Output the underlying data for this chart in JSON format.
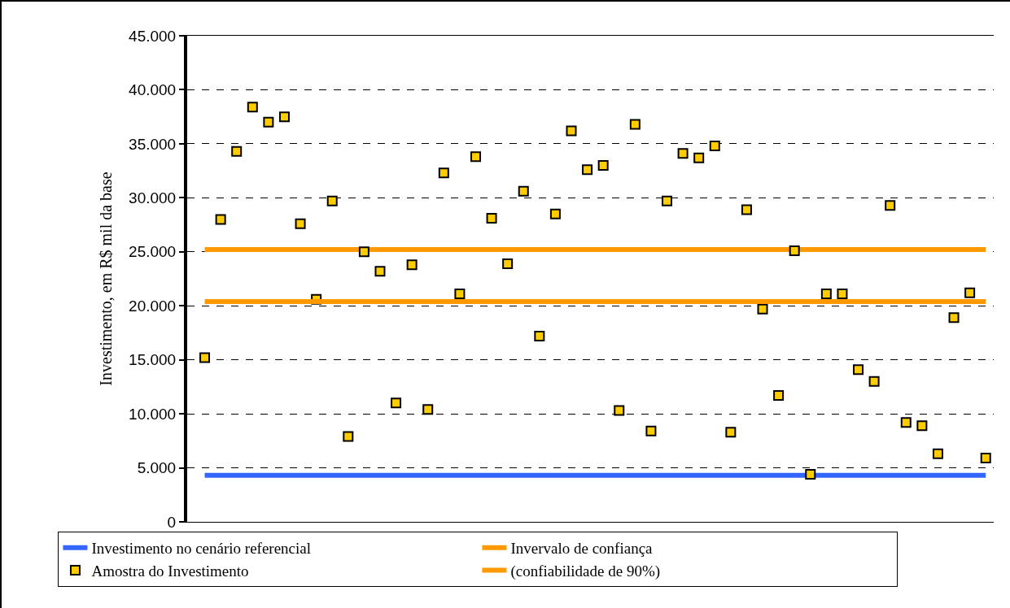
{
  "chart_data": {
    "type": "scatter",
    "ylabel": "Investimento, em R$ mil da base",
    "categories": [
      null,
      null,
      null,
      null,
      null,
      null,
      null,
      null,
      null,
      null,
      null,
      null,
      null,
      null,
      null,
      null,
      null,
      null,
      null,
      null,
      null,
      null,
      null,
      null,
      null,
      null,
      null,
      null,
      null,
      null,
      null,
      null,
      null,
      null,
      null,
      null,
      null,
      null,
      null,
      null,
      null,
      null,
      null,
      null,
      null,
      null,
      null,
      null,
      null,
      null
    ],
    "series": [
      {
        "name": "Investimento no cenário referencial",
        "type": "line",
        "color": "#3366ff",
        "values": [
          4300,
          4300,
          4300,
          4300,
          4300,
          4300,
          4300,
          4300,
          4300,
          4300,
          4300,
          4300,
          4300,
          4300,
          4300,
          4300,
          4300,
          4300,
          4300,
          4300,
          4300,
          4300,
          4300,
          4300,
          4300,
          4300,
          4300,
          4300,
          4300,
          4300,
          4300,
          4300,
          4300,
          4300,
          4300,
          4300,
          4300,
          4300,
          4300,
          4300,
          4300,
          4300,
          4300,
          4300,
          4300,
          4300,
          4300,
          4300,
          4300,
          4300
        ]
      },
      {
        "name": "Invervalo de confiança",
        "type": "line",
        "color": "#ff9900",
        "values": [
          25200,
          25200,
          25200,
          25200,
          25200,
          25200,
          25200,
          25200,
          25200,
          25200,
          25200,
          25200,
          25200,
          25200,
          25200,
          25200,
          25200,
          25200,
          25200,
          25200,
          25200,
          25200,
          25200,
          25200,
          25200,
          25200,
          25200,
          25200,
          25200,
          25200,
          25200,
          25200,
          25200,
          25200,
          25200,
          25200,
          25200,
          25200,
          25200,
          25200,
          25200,
          25200,
          25200,
          25200,
          25200,
          25200,
          25200,
          25200,
          25200,
          25200
        ]
      },
      {
        "name": "Amostra do Investimento",
        "marker": "square",
        "color": "#ffcc00",
        "values": [
          15200,
          28000,
          34300,
          38400,
          37000,
          37500,
          27600,
          20600,
          29700,
          7900,
          25000,
          23200,
          11000,
          23800,
          10400,
          32300,
          21100,
          33800,
          28100,
          23900,
          30600,
          17200,
          28500,
          36200,
          32600,
          33000,
          10300,
          36800,
          8400,
          29700,
          34100,
          33700,
          34800,
          8300,
          28900,
          19700,
          11700,
          25100,
          4400,
          21100,
          21100,
          14100,
          13000,
          29300,
          9200,
          8900,
          6300,
          18900,
          21200,
          5900
        ]
      },
      {
        "name": "(confiabilidade de 90%)",
        "type": "line",
        "color": "#ff9900",
        "values": [
          20400,
          20400,
          20400,
          20400,
          20400,
          20400,
          20400,
          20400,
          20400,
          20400,
          20400,
          20400,
          20400,
          20400,
          20400,
          20400,
          20400,
          20400,
          20400,
          20400,
          20400,
          20400,
          20400,
          20400,
          20400,
          20400,
          20400,
          20400,
          20400,
          20400,
          20400,
          20400,
          20400,
          20400,
          20400,
          20400,
          20400,
          20400,
          20400,
          20400,
          20400,
          20400,
          20400,
          20400,
          20400,
          20400,
          20400,
          20400,
          20400,
          20400
        ]
      }
    ],
    "ylim": [
      0,
      45000
    ],
    "yticks": [
      0,
      {
        "value": 5000,
        "label": "5.000"
      },
      {
        "value": 10000,
        "label": "10.000"
      },
      {
        "value": 15000,
        "label": "15.000"
      },
      {
        "value": 20000,
        "label": "20.000"
      },
      {
        "value": 25000,
        "label": "25.000"
      },
      {
        "value": 30000,
        "label": "30.000"
      },
      {
        "value": 35000,
        "label": "35.000"
      },
      {
        "value": 40000,
        "label": "40.000"
      },
      {
        "value": 45000,
        "label": "45.000"
      }
    ],
    "grid": "y",
    "legend": "bottom",
    "tick_labels": "y",
    "line_style": "solid"
  }
}
